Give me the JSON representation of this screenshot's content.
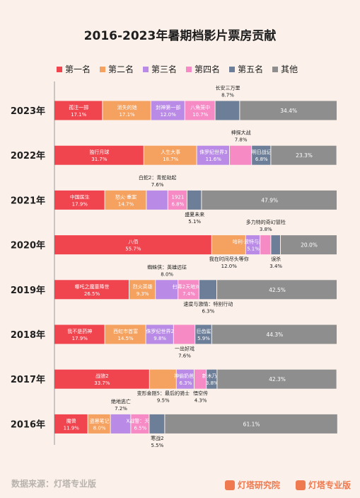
{
  "title": "2016-2023年暑期档影片票房贡献",
  "source": "数据来源：灯塔专业版",
  "brands": [
    "灯塔研究院",
    "灯塔专业版"
  ],
  "colors": {
    "第一名": "#f0444f",
    "第二名": "#f5a15f",
    "第三名": "#b98be6",
    "第四名": "#f58ac5",
    "第五名": "#6d7f98",
    "其他": "#8e8e8e"
  },
  "chart_data": {
    "type": "bar",
    "orientation": "horizontal",
    "stacked": true,
    "unit": "%",
    "series": [
      "第一名",
      "第二名",
      "第三名",
      "第四名",
      "第五名",
      "其他"
    ],
    "rows": [
      {
        "year": "2023年",
        "segments": [
          {
            "name": "孤注一掷",
            "value": 17.1,
            "label": "17.1%"
          },
          {
            "name": "消失的她",
            "value": 17.1,
            "label": "17.1%"
          },
          {
            "name": "封神第一部",
            "value": 12.0,
            "label": "12.0%"
          },
          {
            "name": "八角笼中",
            "value": 10.7,
            "label": "10.7%"
          },
          {
            "name": "长安三万里",
            "value": 8.7,
            "label": "8.7%"
          },
          {
            "name": "",
            "value": 34.4,
            "label": "34.4%"
          }
        ]
      },
      {
        "year": "2022年",
        "segments": [
          {
            "name": "独行月球",
            "value": 31.7,
            "label": "31.7%"
          },
          {
            "name": "人生大事",
            "value": 18.7,
            "label": "18.7%"
          },
          {
            "name": "侏罗纪世界3",
            "value": 11.6,
            "label": "11.6%"
          },
          {
            "name": "神探大战",
            "value": 7.8,
            "label": "7.8%"
          },
          {
            "name": "明日战记",
            "value": 6.8,
            "label": "6.8%"
          },
          {
            "name": "",
            "value": 23.3,
            "label": "23.3%"
          }
        ]
      },
      {
        "year": "2021年",
        "segments": [
          {
            "name": "中国医生",
            "value": 17.9,
            "label": "17.9%"
          },
          {
            "name": "怒火·重案",
            "value": 14.7,
            "label": "14.7%"
          },
          {
            "name": "白蛇2：青蛇劫起",
            "value": 7.6,
            "label": "7.6%"
          },
          {
            "name": "1921",
            "value": 6.8,
            "label": "6.8%"
          },
          {
            "name": "盛夏未来",
            "value": 5.1,
            "label": "5.1%"
          },
          {
            "name": "",
            "value": 47.9,
            "label": "47.9%"
          }
        ]
      },
      {
        "year": "2020年",
        "segments": [
          {
            "name": "八佰",
            "value": 55.7,
            "label": "55.7%"
          },
          {
            "name": "我在时间尽头等你",
            "value": 12.0,
            "label": "12.0%"
          },
          {
            "name": "哈利·波特与魔法石",
            "value": 5.1,
            "label": "5.1%"
          },
          {
            "name": "多力特的奇幻冒险",
            "value": 3.8,
            "label": "3.8%"
          },
          {
            "name": "误杀",
            "value": 3.4,
            "label": "3.4%"
          },
          {
            "name": "",
            "value": 20.0,
            "label": "20.0%"
          }
        ]
      },
      {
        "year": "2019年",
        "segments": [
          {
            "name": "哪吒之魔童降世",
            "value": 26.5,
            "label": "26.5%"
          },
          {
            "name": "烈火英雄",
            "value": 9.3,
            "label": "9.3%"
          },
          {
            "name": "蜘蛛侠：英雄远征",
            "value": 8.0,
            "label": "8.0%"
          },
          {
            "name": "扫毒2天地对决",
            "value": 7.4,
            "label": "7.4%"
          },
          {
            "name": "速度与激情：特别行动",
            "value": 6.3,
            "label": "6.3%"
          },
          {
            "name": "",
            "value": 42.5,
            "label": "42.5%"
          }
        ]
      },
      {
        "year": "2018年",
        "segments": [
          {
            "name": "我不是药神",
            "value": 17.9,
            "label": "17.9%"
          },
          {
            "name": "西虹市首富",
            "value": 14.5,
            "label": "14.5%"
          },
          {
            "name": "侏罗纪世界2",
            "value": 9.8,
            "label": "9.8%"
          },
          {
            "name": "一出好戏",
            "value": 7.6,
            "label": "7.6%"
          },
          {
            "name": "巨齿鲨",
            "value": 5.9,
            "label": "5.9%"
          },
          {
            "name": "",
            "value": 44.3,
            "label": "44.3%"
          }
        ]
      },
      {
        "year": "2017年",
        "segments": [
          {
            "name": "战狼2",
            "value": 33.7,
            "label": "33.7%"
          },
          {
            "name": "变形金刚5：最后的骑士",
            "value": 9.5,
            "label": "9.5%"
          },
          {
            "name": "神偷奶爸3",
            "value": 6.3,
            "label": "6.3%"
          },
          {
            "name": "悟空传",
            "value": 4.3,
            "label": "4.3%"
          },
          {
            "name": "新木乃伊",
            "value": 3.8,
            "label": "3.8%"
          },
          {
            "name": "",
            "value": 42.3,
            "label": "42.3%"
          }
        ]
      },
      {
        "year": "2016年",
        "segments": [
          {
            "name": "魔兽",
            "value": 11.9,
            "label": "11.9%"
          },
          {
            "name": "盗墓笔记",
            "value": 8.0,
            "label": "8.0%"
          },
          {
            "name": "绝地逃亡",
            "value": 7.2,
            "label": "7.2%"
          },
          {
            "name": "X战警：天启",
            "value": 6.5,
            "label": "6.5%"
          },
          {
            "name": "寒战2",
            "value": 5.5,
            "label": "5.5%"
          },
          {
            "name": "",
            "value": 61.1,
            "label": "61.1%"
          }
        ]
      }
    ]
  }
}
